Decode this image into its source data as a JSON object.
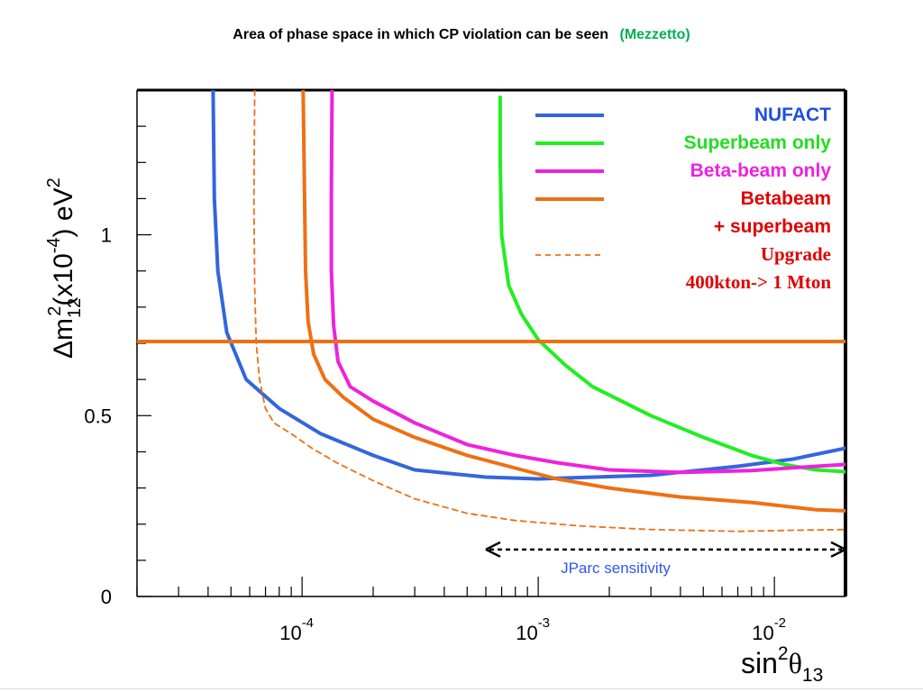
{
  "title": {
    "main": "Area of phase space in which CP violation can be seen",
    "credit": "(Mezzetto)"
  },
  "chart_data": {
    "type": "line",
    "xscale": "log",
    "xlim": [
      2e-05,
      0.02
    ],
    "ylim": [
      0,
      1.4
    ],
    "xlabel": {
      "base": "sin",
      "sup": "2",
      "greek": "θ",
      "sub": "13"
    },
    "ylabel": {
      "delta": "Δm",
      "sub": "12",
      "sup": "2",
      "mid": "(x10",
      "sup2": "-4",
      "end": ") eV",
      "sup3": "2"
    },
    "xticks": [
      {
        "value": 0.0001,
        "base": "10",
        "exp": "-4"
      },
      {
        "value": 0.001,
        "base": "10",
        "exp": "-3"
      },
      {
        "value": 0.01,
        "base": "10",
        "exp": "-2"
      }
    ],
    "yticks": [
      {
        "value": 0,
        "label": "0"
      },
      {
        "value": 0.5,
        "label": "0.5"
      },
      {
        "value": 1,
        "label": "1"
      }
    ],
    "series": [
      {
        "name": "NUFACT",
        "color": "#3366dd",
        "dash": "none",
        "points": [
          [
            4.2e-05,
            1.4
          ],
          [
            4.25e-05,
            1.1
          ],
          [
            4.4e-05,
            0.9
          ],
          [
            4.8e-05,
            0.73
          ],
          [
            5.8e-05,
            0.6
          ],
          [
            8e-05,
            0.52
          ],
          [
            0.00012,
            0.45
          ],
          [
            0.0002,
            0.39
          ],
          [
            0.0003,
            0.35
          ],
          [
            0.0006,
            0.33
          ],
          [
            0.001,
            0.325
          ],
          [
            0.003,
            0.335
          ],
          [
            0.007,
            0.36
          ],
          [
            0.012,
            0.38
          ],
          [
            0.02,
            0.41
          ]
        ]
      },
      {
        "name": "Superbeam only",
        "color": "#22ee22",
        "dash": "none",
        "points": [
          [
            0.00069,
            1.38
          ],
          [
            0.00069,
            1.2
          ],
          [
            0.0007,
            1.0
          ],
          [
            0.00075,
            0.86
          ],
          [
            0.00085,
            0.78
          ],
          [
            0.001,
            0.71
          ],
          [
            0.0013,
            0.64
          ],
          [
            0.0017,
            0.58
          ],
          [
            0.003,
            0.5
          ],
          [
            0.005,
            0.44
          ],
          [
            0.008,
            0.39
          ],
          [
            0.011,
            0.365
          ],
          [
            0.015,
            0.35
          ],
          [
            0.02,
            0.345
          ]
        ]
      },
      {
        "name": "Beta-beam only",
        "color": "#ee22dd",
        "dash": "none",
        "points": [
          [
            0.000134,
            1.4
          ],
          [
            0.000133,
            1.1
          ],
          [
            0.000133,
            0.9
          ],
          [
            0.000136,
            0.75
          ],
          [
            0.000142,
            0.65
          ],
          [
            0.00016,
            0.58
          ],
          [
            0.0002,
            0.54
          ],
          [
            0.0003,
            0.48
          ],
          [
            0.0005,
            0.42
          ],
          [
            0.0008,
            0.39
          ],
          [
            0.0012,
            0.37
          ],
          [
            0.002,
            0.35
          ],
          [
            0.004,
            0.343
          ],
          [
            0.008,
            0.348
          ],
          [
            0.015,
            0.36
          ],
          [
            0.02,
            0.365
          ]
        ]
      },
      {
        "name": "Betabeam + superbeam",
        "color": "#ee7014",
        "dash": "none",
        "points": [
          [
            0.000101,
            1.4
          ],
          [
            0.0001025,
            1.1
          ],
          [
            0.0001035,
            0.9
          ],
          [
            0.000106,
            0.76
          ],
          [
            0.000112,
            0.67
          ],
          [
            0.000125,
            0.6
          ],
          [
            0.00015,
            0.55
          ],
          [
            0.0002,
            0.49
          ],
          [
            0.0003,
            0.44
          ],
          [
            0.0005,
            0.39
          ],
          [
            0.0008,
            0.355
          ],
          [
            0.0012,
            0.325
          ],
          [
            0.002,
            0.3
          ],
          [
            0.004,
            0.275
          ],
          [
            0.008,
            0.26
          ],
          [
            0.015,
            0.24
          ],
          [
            0.02,
            0.237
          ]
        ]
      },
      {
        "name": "Upgrade 400kton-> 1 Mton",
        "color": "#ee7014",
        "dash": "6,5",
        "points": [
          [
            6.3e-05,
            1.4
          ],
          [
            6.25e-05,
            1.1
          ],
          [
            6.3e-05,
            0.85
          ],
          [
            6.4e-05,
            0.7
          ],
          [
            6.6e-05,
            0.6
          ],
          [
            7e-05,
            0.52
          ],
          [
            7.6e-05,
            0.48
          ],
          [
            9e-05,
            0.45
          ],
          [
            0.00011,
            0.41
          ],
          [
            0.00014,
            0.37
          ],
          [
            0.0002,
            0.32
          ],
          [
            0.0003,
            0.27
          ],
          [
            0.0005,
            0.23
          ],
          [
            0.0008,
            0.21
          ],
          [
            0.0015,
            0.195
          ],
          [
            0.003,
            0.185
          ],
          [
            0.007,
            0.18
          ],
          [
            0.012,
            0.183
          ],
          [
            0.02,
            0.185
          ]
        ]
      },
      {
        "name": "",
        "color": "#ee7014",
        "dash": "none",
        "points": [
          [
            2e-05,
            0.705
          ],
          [
            0.02,
            0.705
          ]
        ]
      }
    ],
    "legend": {
      "placement": "top-right",
      "entries": [
        {
          "lines": [
            "NUFACT"
          ],
          "color": "#3366dd",
          "text_color": "#1f4fe0",
          "dash": "none",
          "font": "sans"
        },
        {
          "lines": [
            "Superbeam only"
          ],
          "color": "#22ee22",
          "text_color": "#22dd22",
          "dash": "none",
          "font": "sans"
        },
        {
          "lines": [
            "Beta-beam only"
          ],
          "color": "#ee22dd",
          "text_color": "#ee22dd",
          "dash": "none",
          "font": "sans"
        },
        {
          "lines": [
            "Betabeam",
            "+ superbeam"
          ],
          "color": "#ee7014",
          "text_color": "#e00000",
          "dash": "none",
          "font": "sans"
        },
        {
          "lines": [
            "Upgrade",
            "400kton-> 1 Mton"
          ],
          "color": "#ee7014",
          "text_color": "#e00000",
          "dash": "6,5",
          "font": "serif"
        }
      ]
    },
    "annotation": {
      "text": "JParc sensitivity",
      "x_from": 0.0006,
      "x_to": 0.02,
      "y": 0.13,
      "color": "#3355ee"
    },
    "grid": false
  }
}
